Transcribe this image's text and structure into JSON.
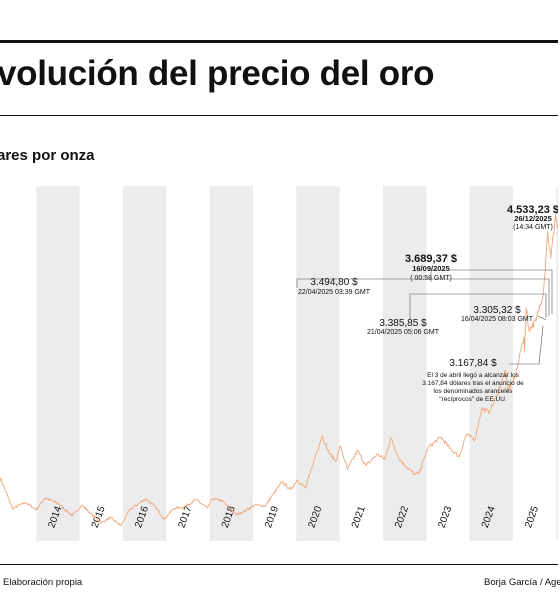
{
  "header": {
    "title": "volución del precio del oro",
    "subtitle": "ares por onza"
  },
  "footer": {
    "source": "Elaboración propia",
    "author": "Borja García / Agen"
  },
  "colors": {
    "line": "#f0a77a",
    "band": "#ececec",
    "text": "#111111",
    "leader": "#555555"
  },
  "chart_data": {
    "type": "line",
    "title": "volución del precio del oro",
    "ylabel": "ares por onza",
    "xlabel": "",
    "x_range": [
      "2013-03-01",
      "2026-01-15"
    ],
    "y_range": [
      1000,
      4700
    ],
    "grid": "alternating vertical year bands",
    "legend": "none",
    "x_ticks": [
      {
        "label": "2014",
        "date": "2014-07-01"
      },
      {
        "label": "2015",
        "date": "2015-07-01"
      },
      {
        "label": "2016",
        "date": "2016-07-01"
      },
      {
        "label": "2017",
        "date": "2017-07-01"
      },
      {
        "label": "2018",
        "date": "2018-07-01"
      },
      {
        "label": "2019",
        "date": "2019-07-01"
      },
      {
        "label": "2020",
        "date": "2020-07-01"
      },
      {
        "label": "2021",
        "date": "2021-07-01"
      },
      {
        "label": "2022",
        "date": "2022-07-01"
      },
      {
        "label": "2023",
        "date": "2023-07-01"
      },
      {
        "label": "2024",
        "date": "2024-07-01"
      },
      {
        "label": "2025",
        "date": "2025-07-01"
      }
    ],
    "series": [
      {
        "x": [
          "2013-03-01",
          "2013-06-15",
          "2013-10-01",
          "2014-01-01",
          "2014-03-15",
          "2014-07-01",
          "2014-11-01",
          "2015-01-20",
          "2015-04-01",
          "2015-07-01",
          "2015-09-15",
          "2015-12-15",
          "2016-03-01",
          "2016-07-10",
          "2016-10-01",
          "2016-12-15",
          "2017-03-01",
          "2017-06-01",
          "2017-09-08",
          "2017-12-15",
          "2018-01-25",
          "2018-04-15",
          "2018-08-15",
          "2018-11-01",
          "2019-01-15",
          "2019-04-15",
          "2019-06-25",
          "2019-09-04",
          "2019-11-15",
          "2020-01-08",
          "2020-03-19",
          "2020-05-15",
          "2020-08-06",
          "2020-10-01",
          "2020-11-30",
          "2021-01-05",
          "2021-03-08",
          "2021-06-01",
          "2021-08-09",
          "2021-11-15",
          "2022-01-15",
          "2022-03-08",
          "2022-05-15",
          "2022-07-15",
          "2022-09-28",
          "2022-11-01",
          "2023-01-15",
          "2023-05-04",
          "2023-07-15",
          "2023-10-05",
          "2023-12-04",
          "2024-02-15",
          "2024-04-12",
          "2024-06-15",
          "2024-08-15",
          "2024-10-30",
          "2024-11-15",
          "2025-01-15",
          "2025-02-24",
          "2025-04-03",
          "2025-04-07",
          "2025-04-16",
          "2025-04-21",
          "2025-04-22",
          "2025-05-15",
          "2025-07-15",
          "2025-09-16",
          "2025-10-20",
          "2025-11-15",
          "2025-12-26",
          "2026-01-10"
        ],
        "y": [
          1600,
          1250,
          1320,
          1240,
          1370,
          1310,
          1170,
          1290,
          1200,
          1090,
          1150,
          1060,
          1240,
          1360,
          1270,
          1130,
          1250,
          1270,
          1350,
          1255,
          1360,
          1340,
          1180,
          1230,
          1290,
          1280,
          1420,
          1550,
          1460,
          1570,
          1480,
          1730,
          2065,
          1880,
          1780,
          1950,
          1690,
          1900,
          1730,
          1860,
          1800,
          2040,
          1810,
          1720,
          1630,
          1650,
          1930,
          2050,
          1930,
          1830,
          2080,
          2020,
          2370,
          2330,
          2510,
          2790,
          2570,
          2700,
          2950,
          3167.84,
          3000,
          3305.32,
          3385.85,
          3494.8,
          3250,
          3350,
          3689.37,
          4350,
          4050,
          4533.23,
          4380
        ]
      }
    ],
    "annotations": [
      {
        "value": "4.533,23 $",
        "date": "26/12/2025",
        "time": "(14:34 GMT)"
      },
      {
        "value": "3.689,37 $",
        "date": "16/09/2025",
        "time": "( 00:58 GMT)"
      },
      {
        "value": "3.494,80 $",
        "date": "22/04/2025 03:39 GMT"
      },
      {
        "value": "3.385,85 $",
        "date": "21/04/2025 05:06 GMT"
      },
      {
        "value": "3.305,32 $",
        "date": "16/04/2025 08:03 GMT"
      },
      {
        "value": "3.167,84 $",
        "note": [
          "El 3 de abril llegó a alcanzar los",
          "3.167,84 dólares tras el anuncio de",
          "los denominados aranceles",
          "\"recíprocos\" de EE.UU."
        ]
      }
    ]
  }
}
